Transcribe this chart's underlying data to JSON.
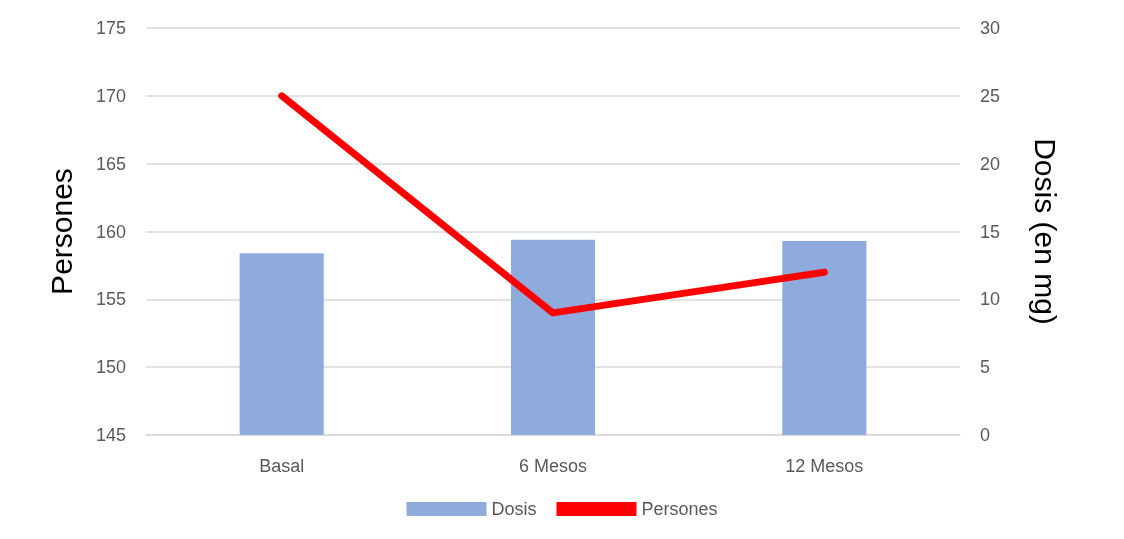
{
  "chart_data": {
    "type": "bar",
    "categories": [
      "Basal",
      "6 Mesos",
      "12 Mesos"
    ],
    "series": [
      {
        "name": "Dosis",
        "axis": "y2",
        "color": "#8faadc",
        "values": [
          13.4,
          14.4,
          14.3
        ]
      },
      {
        "name": "Persones",
        "type": "line",
        "color": "#ff0000",
        "values": [
          170,
          154,
          157
        ]
      }
    ],
    "ylabel": "Persones",
    "y2label": "Dosis (en mg)",
    "ylim": [
      145,
      175
    ],
    "yticks": [
      145,
      150,
      155,
      160,
      165,
      170,
      175
    ],
    "y2lim": [
      0,
      30
    ],
    "y2ticks": [
      0,
      5,
      10,
      15,
      20,
      25,
      30
    ],
    "grid": "y",
    "legend": "bottom",
    "marker": "none",
    "line_style": "solid"
  }
}
